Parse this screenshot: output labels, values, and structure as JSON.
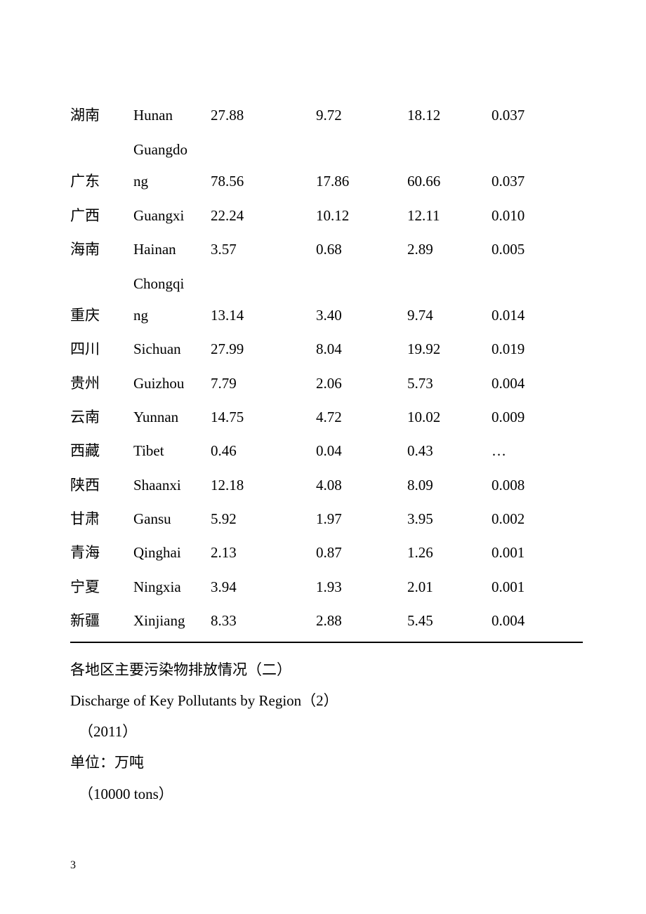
{
  "table_rows": [
    {
      "cn": "湖南",
      "en": "Hunan",
      "v1": "27.88",
      "v2": "9.72",
      "v3": "18.12",
      "v4": "0.037",
      "wrap": false
    },
    {
      "cn": "广东",
      "en": "Guangdong",
      "v1": "78.56",
      "v2": "17.86",
      "v3": "60.66",
      "v4": "0.037",
      "wrap": true,
      "en_part1": "Guangdo",
      "en_part2": "ng"
    },
    {
      "cn": "广西",
      "en": "Guangxi",
      "v1": "22.24",
      "v2": "10.12",
      "v3": "12.11",
      "v4": "0.010",
      "wrap": false
    },
    {
      "cn": "海南",
      "en": "Hainan",
      "v1": "3.57",
      "v2": "0.68",
      "v3": "2.89",
      "v4": "0.005",
      "wrap": false
    },
    {
      "cn": "重庆",
      "en": "Chongqing",
      "v1": "13.14",
      "v2": "3.40",
      "v3": "9.74",
      "v4": "0.014",
      "wrap": true,
      "en_part1": "Chongqi",
      "en_part2": "ng"
    },
    {
      "cn": "四川",
      "en": "Sichuan",
      "v1": "27.99",
      "v2": "8.04",
      "v3": "19.92",
      "v4": "0.019",
      "wrap": false
    },
    {
      "cn": "贵州",
      "en": "Guizhou",
      "v1": "7.79",
      "v2": "2.06",
      "v3": "5.73",
      "v4": "0.004",
      "wrap": false
    },
    {
      "cn": "云南",
      "en": "Yunnan",
      "v1": "14.75",
      "v2": "4.72",
      "v3": "10.02",
      "v4": "0.009",
      "wrap": false
    },
    {
      "cn": "西藏",
      "en": "Tibet",
      "v1": "0.46",
      "v2": "0.04",
      "v3": "0.43",
      "v4": "…",
      "wrap": false
    },
    {
      "cn": "陕西",
      "en": "Shaanxi",
      "v1": "12.18",
      "v2": "4.08",
      "v3": "8.09",
      "v4": "0.008",
      "wrap": false
    },
    {
      "cn": "甘肃",
      "en": "Gansu",
      "v1": "5.92",
      "v2": "1.97",
      "v3": "3.95",
      "v4": "0.002",
      "wrap": false
    },
    {
      "cn": "青海",
      "en": "Qinghai",
      "v1": "2.13",
      "v2": "0.87",
      "v3": "1.26",
      "v4": "0.001",
      "wrap": false
    },
    {
      "cn": "宁夏",
      "en": "Ningxia",
      "v1": "3.94",
      "v2": "1.93",
      "v3": "2.01",
      "v4": "0.001",
      "wrap": false
    },
    {
      "cn": "新疆",
      "en": "Xinjiang",
      "v1": "8.33",
      "v2": "2.88",
      "v3": "5.45",
      "v4": "0.004",
      "wrap": false
    }
  ],
  "footer": {
    "title_cn": "各地区主要污染物排放情况（二）",
    "title_en": "Discharge of Key Pollutants by Region（2）",
    "year": "（2011）",
    "unit_cn": "单位：万吨",
    "unit_en": "（10000  tons）"
  },
  "page_number": "3"
}
